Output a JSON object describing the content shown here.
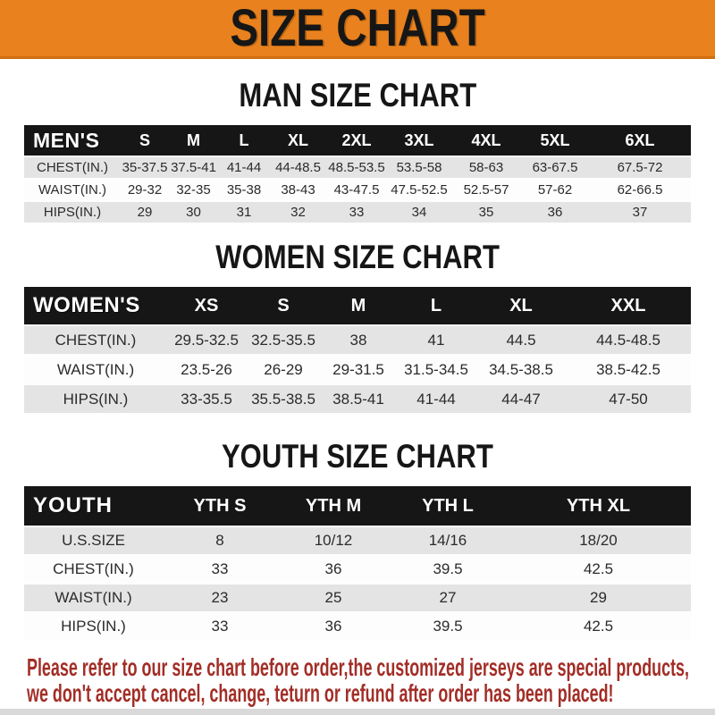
{
  "banner": {
    "title": "SIZE CHART"
  },
  "sections": [
    {
      "id": "men",
      "title": "MAN SIZE CHART",
      "header_label": "MEN'S",
      "columns": [
        "S",
        "M",
        "L",
        "XL",
        "2XL",
        "3XL",
        "4XL",
        "5XL",
        "6XL"
      ],
      "rows": [
        {
          "label": "CHEST(IN.)",
          "values": [
            "35-37.5",
            "37.5-41",
            "41-44",
            "44-48.5",
            "48.5-53.5",
            "53.5-58",
            "58-63",
            "63-67.5",
            "67.5-72"
          ]
        },
        {
          "label": "WAIST(IN.)",
          "values": [
            "29-32",
            "32-35",
            "35-38",
            "38-43",
            "43-47.5",
            "47.5-52.5",
            "52.5-57",
            "57-62",
            "62-66.5"
          ]
        },
        {
          "label": "HIPS(IN.)",
          "values": [
            "29",
            "30",
            "31",
            "32",
            "33",
            "34",
            "35",
            "36",
            "37"
          ]
        }
      ]
    },
    {
      "id": "women",
      "title": "WOMEN SIZE CHART",
      "header_label": "WOMEN'S",
      "columns": [
        "XS",
        "S",
        "M",
        "L",
        "XL",
        "XXL"
      ],
      "rows": [
        {
          "label": "CHEST(IN.)",
          "values": [
            "29.5-32.5",
            "32.5-35.5",
            "38",
            "41",
            "44.5",
            "44.5-48.5"
          ]
        },
        {
          "label": "WAIST(IN.)",
          "values": [
            "23.5-26",
            "26-29",
            "29-31.5",
            "31.5-34.5",
            "34.5-38.5",
            "38.5-42.5"
          ]
        },
        {
          "label": "HIPS(IN.)",
          "values": [
            "33-35.5",
            "35.5-38.5",
            "38.5-41",
            "41-44",
            "44-47",
            "47-50"
          ]
        }
      ]
    },
    {
      "id": "youth",
      "title": "YOUTH SIZE CHART",
      "header_label": "YOUTH",
      "columns": [
        "YTH S",
        "YTH M",
        "YTH L",
        "YTH XL"
      ],
      "rows": [
        {
          "label": "U.S.SIZE",
          "values": [
            "8",
            "10/12",
            "14/16",
            "18/20"
          ]
        },
        {
          "label": "CHEST(IN.)",
          "values": [
            "33",
            "36",
            "39.5",
            "42.5"
          ]
        },
        {
          "label": "WAIST(IN.)",
          "values": [
            "23",
            "25",
            "27",
            "29"
          ]
        },
        {
          "label": "HIPS(IN.)",
          "values": [
            "33",
            "36",
            "39.5",
            "42.5"
          ]
        }
      ]
    }
  ],
  "footer": {
    "line1": "Please refer to our size chart before order,the customized jerseys are special products,",
    "line2": "we don't accept cancel, change, teturn or refund after order has been placed!"
  },
  "colors": {
    "banner_bg": "#E8811E",
    "header_bar": "#161616",
    "row_gray": "#E4E4E4",
    "row_white": "#FDFDFD",
    "note_red": "#A22E27"
  }
}
